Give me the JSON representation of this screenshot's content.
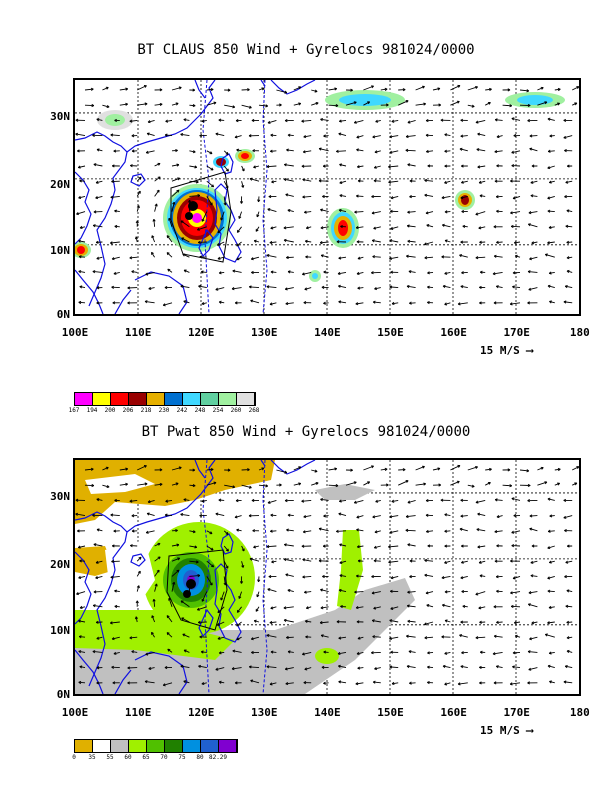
{
  "panel1": {
    "title": "BT CLAUS 850 Wind + Gyrelocs 981024/0000",
    "colorbar": {
      "colors": [
        "#ff00ff",
        "#ffff00",
        "#ff0000",
        "#990000",
        "#e6b000",
        "#0070d0",
        "#40d8ff",
        "#60d0a0",
        "#a0f0a0",
        "#e0e0e0"
      ],
      "labels": [
        "167",
        "194",
        "200",
        "206",
        "218",
        "230",
        "242",
        "248",
        "254",
        "260",
        "268"
      ]
    }
  },
  "panel2": {
    "title": "BT Pwat 850 Wind + Gyrelocs 981024/0000",
    "colorbar": {
      "colors": [
        "#e0b000",
        "#ffffff",
        "#c0c0c0",
        "#a0f000",
        "#50c000",
        "#208000",
        "#0090e0",
        "#2060d0",
        "#8000d0"
      ],
      "labels": [
        "0",
        "35",
        "55",
        "60",
        "65",
        "70",
        "75",
        "80",
        "82.29"
      ]
    }
  },
  "axes": {
    "lat_labels": [
      "30N",
      "20N",
      "10N",
      "0N"
    ],
    "lon_labels": [
      "100E",
      "110E",
      "120E",
      "130E",
      "140E",
      "150E",
      "160E",
      "170E",
      "180"
    ],
    "scale_label": "15 M/S"
  }
}
